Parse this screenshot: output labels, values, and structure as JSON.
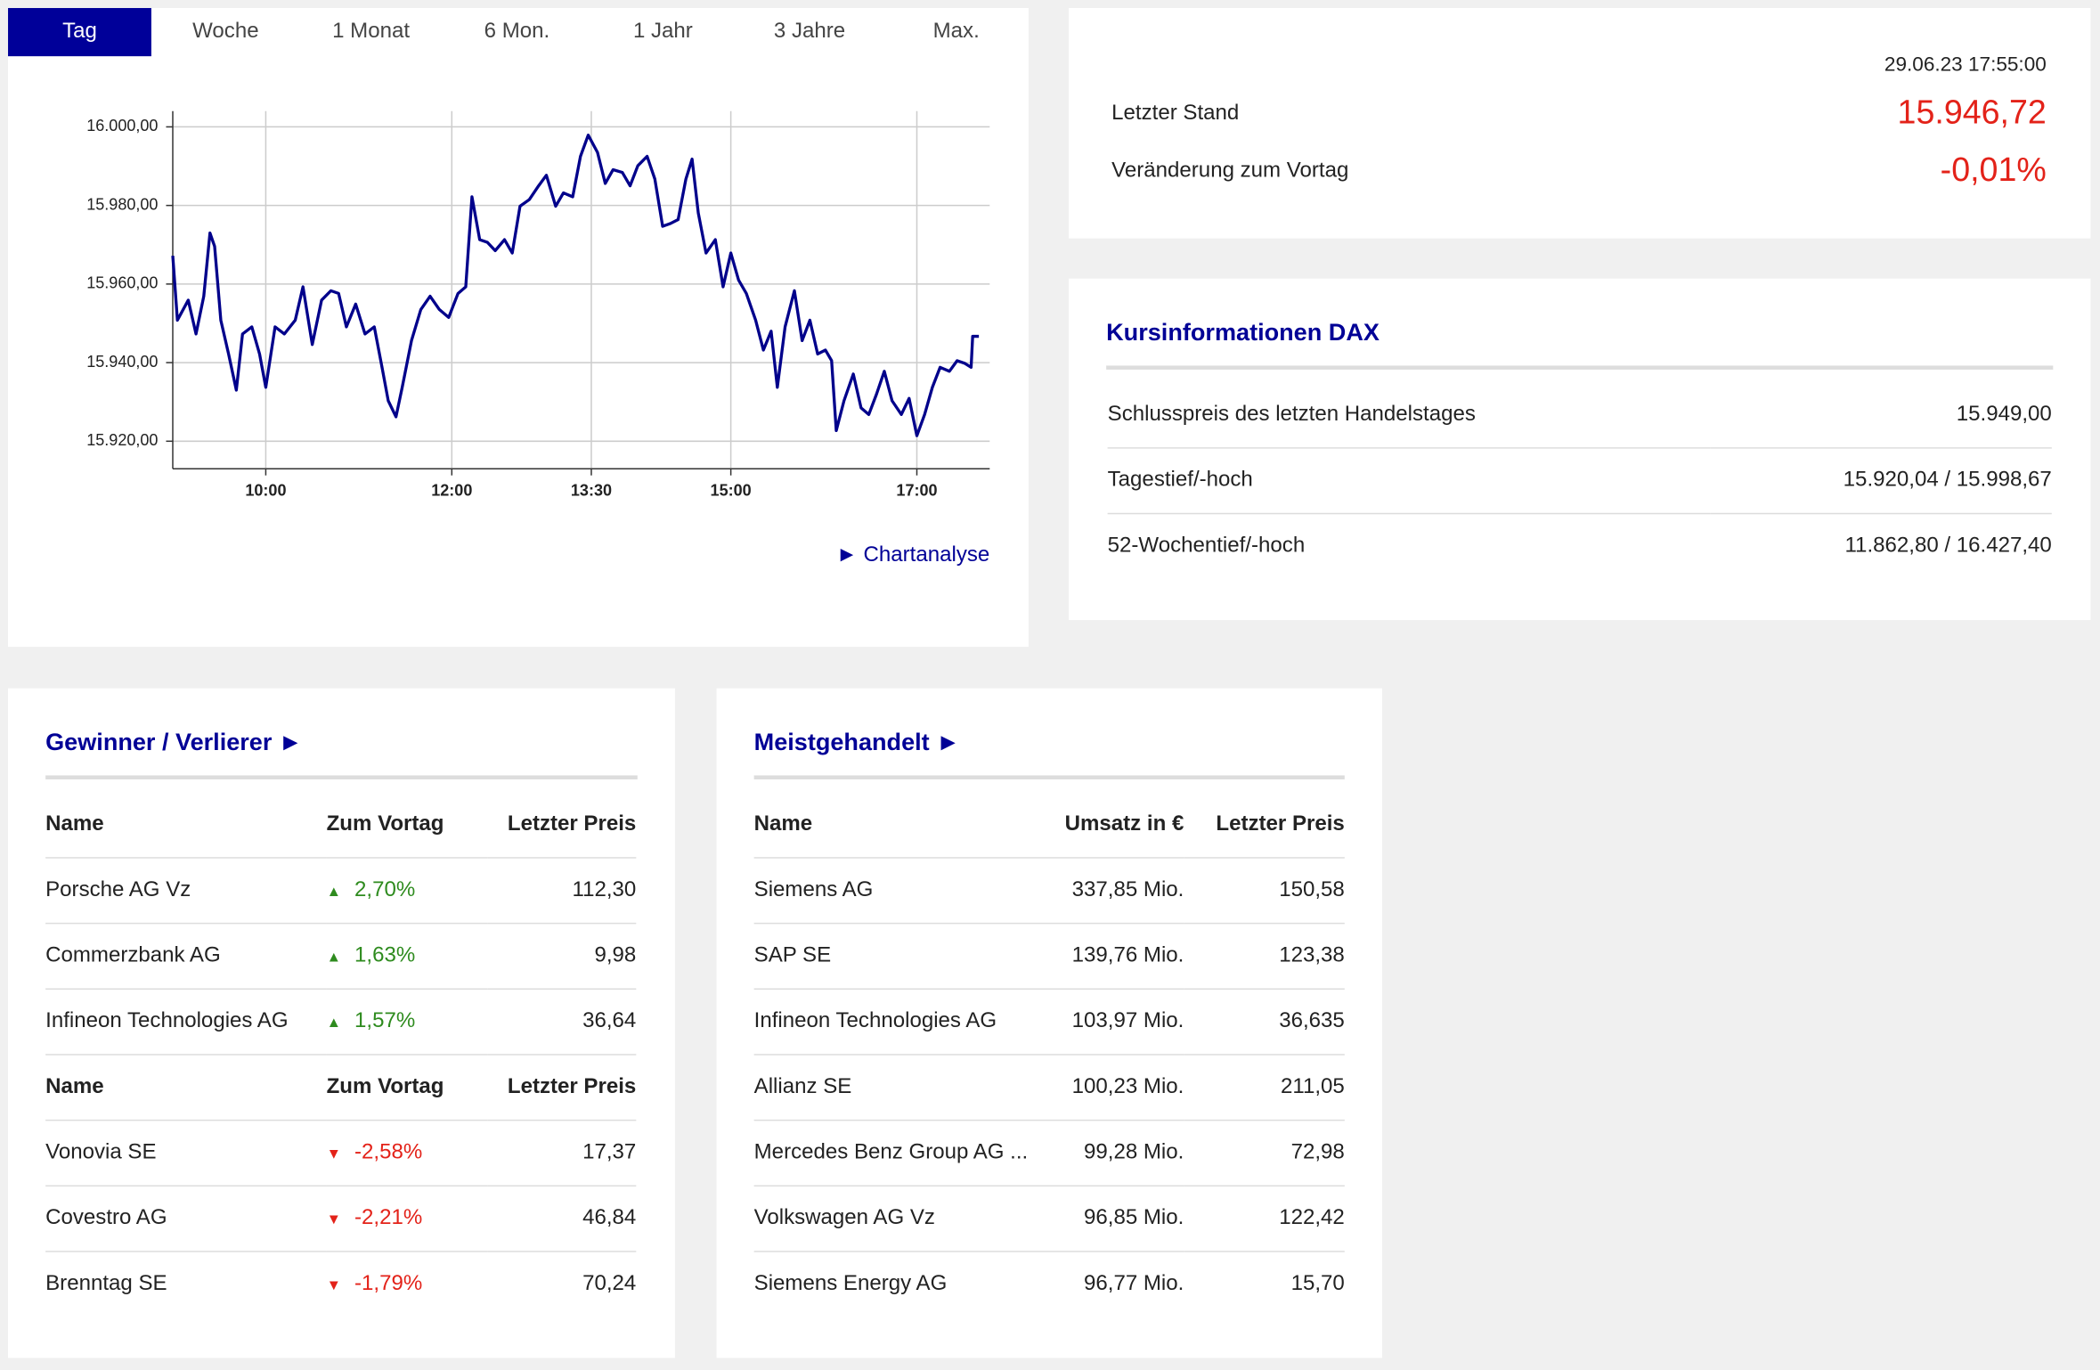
{
  "tabs": [
    "Tag",
    "Woche",
    "1 Monat",
    "6 Mon.",
    "1 Jahr",
    "3 Jahre",
    "Max."
  ],
  "chart_data": {
    "type": "line",
    "link": "Chartanalyse",
    "xlim": [
      "09:00",
      "17:47"
    ],
    "xticks": [
      "10:00",
      "12:00",
      "13:30",
      "15:00",
      "17:00"
    ],
    "ylim": [
      15913,
      16004
    ],
    "yticks": [
      {
        "value": 15920,
        "label": "15.920,00"
      },
      {
        "value": 15940,
        "label": "15.940,00"
      },
      {
        "value": 15960,
        "label": "15.960,00"
      },
      {
        "value": 15980,
        "label": "15.980,00"
      },
      {
        "value": 16000,
        "label": "16.000,00"
      }
    ],
    "grid": true,
    "color": "#00008b",
    "x": [
      "09:00",
      "09:03",
      "09:10",
      "09:15",
      "09:20",
      "09:24",
      "09:27",
      "09:31",
      "09:36",
      "09:41",
      "09:45",
      "09:51",
      "09:56",
      "10:00",
      "10:06",
      "10:12",
      "10:19",
      "10:24",
      "10:30",
      "10:36",
      "10:42",
      "10:47",
      "10:52",
      "10:58",
      "11:04",
      "11:10",
      "11:15",
      "11:19",
      "11:24",
      "11:28",
      "11:34",
      "11:40",
      "11:46",
      "11:52",
      "11:58",
      "12:04",
      "12:09",
      "12:13",
      "12:18",
      "12:23",
      "12:28",
      "12:34",
      "12:39",
      "12:44",
      "12:50",
      "12:56",
      "13:01",
      "13:07",
      "13:12",
      "13:18",
      "13:23",
      "13:28",
      "13:34",
      "13:39",
      "13:44",
      "13:50",
      "13:55",
      "14:00",
      "14:06",
      "14:11",
      "14:16",
      "14:21",
      "14:26",
      "14:31",
      "14:35",
      "14:39",
      "14:44",
      "14:50",
      "14:55",
      "15:00",
      "15:05",
      "15:10",
      "15:16",
      "15:21",
      "15:26",
      "15:30",
      "15:35",
      "15:41",
      "15:46",
      "15:51",
      "15:56",
      "16:01",
      "16:05",
      "16:08",
      "16:13",
      "16:19",
      "16:24",
      "16:29",
      "16:34",
      "16:39",
      "16:44",
      "16:50",
      "16:55",
      "17:00",
      "17:05",
      "17:10",
      "17:15",
      "17:21",
      "17:26",
      "17:31",
      "17:35",
      "17:36",
      "17:40"
    ],
    "values": [
      15967.2,
      15950.8,
      15955.9,
      15947.3,
      15956.9,
      15973.0,
      15969.6,
      15950.8,
      15942.2,
      15933.0,
      15947.3,
      15949.1,
      15942.2,
      15933.7,
      15949.1,
      15947.3,
      15950.8,
      15959.3,
      15944.6,
      15955.9,
      15958.3,
      15957.6,
      15949.1,
      15954.9,
      15947.3,
      15949.1,
      15938.8,
      15930.3,
      15926.2,
      15933.7,
      15945.6,
      15953.5,
      15956.9,
      15953.5,
      15951.5,
      15957.6,
      15959.3,
      15982.2,
      15971.3,
      15970.6,
      15968.5,
      15971.3,
      15967.9,
      15979.8,
      15981.5,
      15985.0,
      15987.7,
      15979.8,
      15983.2,
      15982.2,
      15992.5,
      15997.9,
      15993.5,
      15985.6,
      15989.1,
      15988.4,
      15985.0,
      15990.1,
      15992.5,
      15986.7,
      15974.7,
      15975.4,
      15976.4,
      15986.7,
      15991.8,
      15978.1,
      15967.9,
      15971.3,
      15959.3,
      15967.9,
      15961.0,
      15957.6,
      15950.8,
      15943.2,
      15948.0,
      15933.7,
      15949.1,
      15958.3,
      15945.6,
      15950.8,
      15942.2,
      15943.2,
      15940.5,
      15922.7,
      15930.3,
      15937.1,
      15928.5,
      15926.8,
      15932.0,
      15937.8,
      15930.3,
      15926.8,
      15930.9,
      15921.4,
      15926.8,
      15933.7,
      15938.8,
      15937.8,
      15940.5,
      15939.8,
      15938.8,
      15946.7,
      15946.7
    ]
  },
  "quote": {
    "timestamp": "29.06.23 17:55:00",
    "rows": [
      [
        "Letzter Stand",
        "15.946,72"
      ],
      [
        "Veränderung zum Vortag",
        "-0,01%"
      ]
    ]
  },
  "info": {
    "title": "Kursinformationen DAX",
    "rows": [
      [
        "Schlusspreis des letzten Handelstages",
        "15.949,00"
      ],
      [
        "Tagestief/-hoch",
        "15.920,04 / 15.998,67"
      ],
      [
        "52-Wochentief/-hoch",
        "11.862,80 / 16.427,40"
      ]
    ]
  },
  "movers": {
    "title": "Gewinner / Verlierer",
    "gainers": {
      "header": [
        "Name",
        "Zum Vortag",
        "Letzter Preis"
      ],
      "rows": [
        [
          "Porsche AG Vz",
          "2,70%",
          "112,30"
        ],
        [
          "Commerzbank AG",
          "1,63%",
          "9,98"
        ],
        [
          "Infineon Technologies AG",
          "1,57%",
          "36,64"
        ]
      ]
    },
    "losers": {
      "header": [
        "Name",
        "Zum Vortag",
        "Letzter Preis"
      ],
      "rows": [
        [
          "Vonovia SE",
          "-2,58%",
          "17,37"
        ],
        [
          "Covestro AG",
          "-2,21%",
          "46,84"
        ],
        [
          "Brenntag SE",
          "-1,79%",
          "70,24"
        ]
      ]
    }
  },
  "most_traded": {
    "title": "Meistgehandelt",
    "header": [
      "Name",
      "Umsatz in €",
      "Letzter Preis"
    ],
    "rows": [
      [
        "Siemens AG",
        "337,85 Mio.",
        "150,58"
      ],
      [
        "SAP SE",
        "139,76 Mio.",
        "123,38"
      ],
      [
        "Infineon Technologies AG",
        "103,97 Mio.",
        "36,635"
      ],
      [
        "Allianz SE",
        "100,23 Mio.",
        "211,05"
      ],
      [
        "Mercedes Benz Group AG ...",
        "99,28 Mio.",
        "72,98"
      ],
      [
        "Volkswagen AG Vz",
        "96,85 Mio.",
        "122,42"
      ],
      [
        "Siemens Energy AG",
        "96,77 Mio.",
        "15,70"
      ]
    ]
  }
}
